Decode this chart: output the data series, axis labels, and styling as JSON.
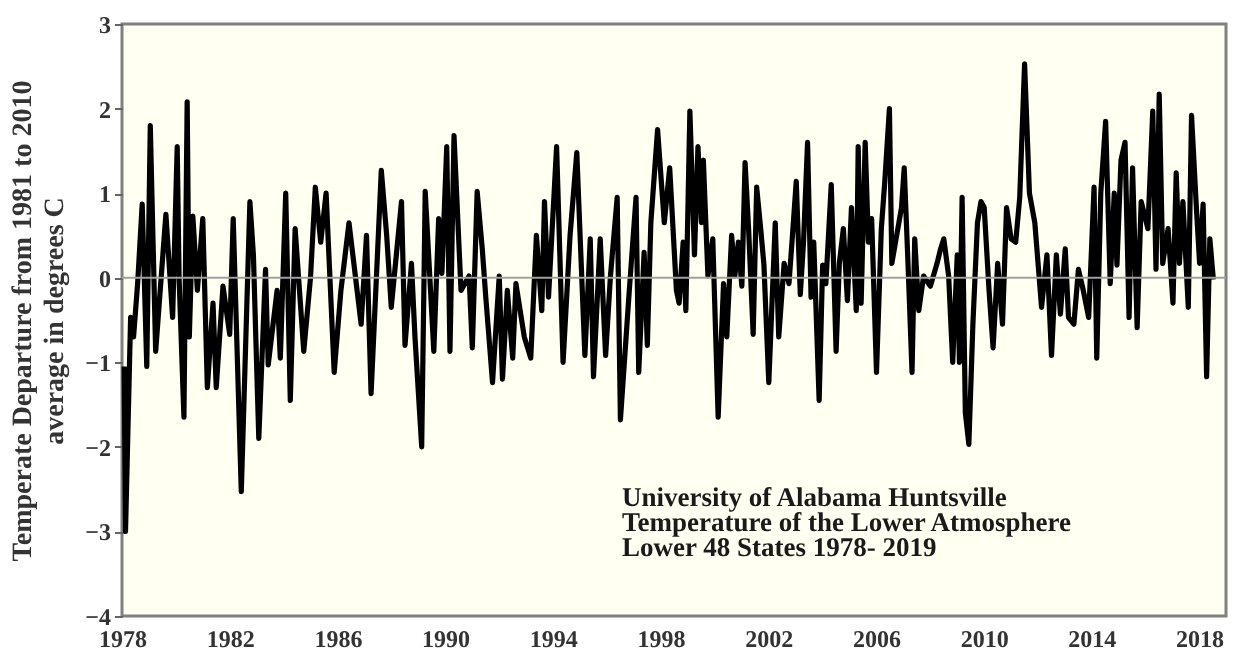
{
  "chart_data": {
    "type": "line",
    "ylabel": "Temperate Departure from 1981 to 2010\naverage in degrees C",
    "annotations": [
      "University of Alabama Huntsville",
      "Temperature of the Lower Atmosphere",
      "Lower 48 States  1978- 2019"
    ],
    "x": [
      1978.08,
      1978.13,
      1978.32,
      1978.43,
      1978.58,
      1978.75,
      1978.92,
      1979.05,
      1979.25,
      1979.63,
      1979.88,
      1980.05,
      1980.12,
      1980.3,
      1980.42,
      1980.5,
      1980.63,
      1980.8,
      1981.0,
      1981.17,
      1981.38,
      1981.5,
      1981.75,
      1982.0,
      1982.13,
      1982.43,
      1982.75,
      1982.88,
      1983.08,
      1983.33,
      1983.43,
      1983.76,
      1983.88,
      1984.08,
      1984.25,
      1984.43,
      1984.75,
      1985.0,
      1985.18,
      1985.38,
      1985.58,
      1985.88,
      1986.13,
      1986.43,
      1986.88,
      1987.08,
      1987.25,
      1987.63,
      1987.83,
      1988.0,
      1988.38,
      1988.51,
      1988.75,
      1988.88,
      1989.13,
      1989.26,
      1989.58,
      1989.76,
      1989.88,
      1990.06,
      1990.18,
      1990.33,
      1990.59,
      1990.89,
      1991.01,
      1991.19,
      1991.38,
      1991.51,
      1991.76,
      1992.01,
      1992.13,
      1992.31,
      1992.51,
      1992.63,
      1992.94,
      1993.18,
      1993.39,
      1993.59,
      1993.69,
      1993.84,
      1994.14,
      1994.38,
      1994.64,
      1994.89,
      1995.19,
      1995.39,
      1995.51,
      1995.76,
      1995.96,
      1996.14,
      1996.39,
      1996.51,
      1996.84,
      1997.09,
      1997.19,
      1997.39,
      1997.51,
      1997.64,
      1997.89,
      1998.14,
      1998.34,
      1998.59,
      1998.69,
      1998.84,
      1998.94,
      1999.09,
      1999.26,
      1999.39,
      1999.52,
      1999.59,
      1999.76,
      1999.94,
      2000.14,
      2000.34,
      2000.46,
      2000.64,
      2000.76,
      2000.89,
      2001.02,
      2001.14,
      2001.27,
      2001.44,
      2001.57,
      2001.72,
      2001.84,
      2002.02,
      2002.26,
      2002.39,
      2002.59,
      2002.77,
      2002.89,
      2003.04,
      2003.19,
      2003.31,
      2003.46,
      2003.59,
      2003.69,
      2003.89,
      2004.02,
      2004.14,
      2004.34,
      2004.52,
      2004.64,
      2004.79,
      2004.94,
      2005.09,
      2005.27,
      2005.34,
      2005.45,
      2005.6,
      2005.72,
      2005.84,
      2006.02,
      2006.2,
      2006.32,
      2006.5,
      2006.59,
      2006.77,
      2006.95,
      2007.05,
      2007.19,
      2007.34,
      2007.44,
      2007.59,
      2007.77,
      2008.02,
      2008.27,
      2008.4,
      2008.52,
      2008.7,
      2008.85,
      2009.02,
      2009.1,
      2009.2,
      2009.32,
      2009.45,
      2009.6,
      2009.77,
      2009.9,
      2010.02,
      2010.2,
      2010.35,
      2010.52,
      2010.7,
      2010.85,
      2011.02,
      2011.19,
      2011.34,
      2011.52,
      2011.7,
      2011.9,
      2012.15,
      2012.35,
      2012.52,
      2012.7,
      2012.85,
      2013.03,
      2013.15,
      2013.35,
      2013.52,
      2013.7,
      2013.9,
      2014.1,
      2014.2,
      2014.35,
      2014.53,
      2014.7,
      2014.85,
      2014.95,
      2015.1,
      2015.25,
      2015.4,
      2015.53,
      2015.7,
      2015.85,
      2016.1,
      2016.28,
      2016.4,
      2016.52,
      2016.65,
      2016.85,
      2017.03,
      2017.15,
      2017.27,
      2017.4,
      2017.6,
      2017.72,
      2017.9,
      2018.02,
      2018.15,
      2018.28,
      2018.4,
      2018.53
    ],
    "series": [
      {
        "color": "#000000",
        "values": [
          -1.05,
          -3.0,
          -0.47,
          -0.7,
          -0.07,
          0.87,
          -1.05,
          1.8,
          -0.87,
          0.75,
          -0.47,
          1.55,
          0.0,
          -1.65,
          2.08,
          -0.7,
          0.73,
          -0.15,
          0.7,
          -1.3,
          -0.3,
          -1.3,
          -0.1,
          -0.67,
          0.7,
          -2.53,
          0.9,
          0.27,
          -1.9,
          0.1,
          -1.03,
          -0.15,
          -0.95,
          1.0,
          -1.45,
          0.58,
          -0.87,
          0.0,
          1.07,
          0.42,
          1.0,
          -1.12,
          -0.15,
          0.65,
          -0.55,
          0.5,
          -1.37,
          1.27,
          0.5,
          -0.35,
          0.9,
          -0.8,
          0.17,
          -0.7,
          -2.0,
          1.02,
          -0.87,
          0.7,
          0.05,
          1.55,
          -0.87,
          1.68,
          -0.15,
          0.02,
          -0.83,
          1.02,
          0.34,
          -0.23,
          -1.24,
          0.02,
          -1.2,
          -0.15,
          -0.95,
          -0.07,
          -0.7,
          -0.95,
          0.5,
          -0.39,
          0.9,
          -0.23,
          1.55,
          -1.0,
          0.5,
          1.48,
          -0.92,
          0.46,
          -1.17,
          0.46,
          -0.92,
          0.02,
          0.95,
          -1.68,
          -0.15,
          0.95,
          -1.12,
          0.3,
          -0.8,
          0.65,
          1.75,
          0.65,
          1.3,
          -0.15,
          -0.3,
          0.42,
          -0.39,
          1.97,
          0.27,
          1.55,
          0.65,
          1.39,
          0.02,
          0.46,
          -1.65,
          -0.07,
          -0.7,
          0.5,
          0.02,
          0.42,
          -0.1,
          1.36,
          0.58,
          -0.67,
          1.07,
          0.58,
          0.15,
          -1.24,
          0.65,
          -0.7,
          0.17,
          -0.07,
          0.46,
          1.14,
          -0.2,
          0.42,
          1.6,
          -0.23,
          0.42,
          -1.45,
          0.15,
          -0.07,
          1.1,
          -0.87,
          0.17,
          0.58,
          -0.27,
          0.83,
          -0.39,
          1.55,
          -0.3,
          1.6,
          0.42,
          0.7,
          -1.12,
          0.58,
          1.1,
          2.0,
          0.17,
          0.5,
          0.83,
          1.3,
          0.17,
          -1.12,
          0.46,
          -0.39,
          0.02,
          -0.1,
          0.17,
          0.34,
          0.46,
          0.02,
          -1.0,
          0.27,
          -1.0,
          0.95,
          -1.6,
          -1.97,
          -0.55,
          0.65,
          0.9,
          0.83,
          -0.15,
          -0.83,
          0.17,
          -0.55,
          0.83,
          0.46,
          0.42,
          0.95,
          2.53,
          1.0,
          0.65,
          -0.35,
          0.27,
          -0.92,
          0.27,
          -0.43,
          0.34,
          -0.47,
          -0.55,
          0.1,
          -0.15,
          -0.47,
          1.07,
          -0.95,
          1.0,
          1.85,
          -0.07,
          1.0,
          0.15,
          1.39,
          1.6,
          -0.47,
          1.3,
          -0.59,
          0.9,
          0.58,
          1.97,
          0.1,
          2.17,
          0.17,
          0.58,
          -0.3,
          1.24,
          0.17,
          0.9,
          -0.35,
          1.92,
          0.83,
          0.17,
          0.87,
          -1.17,
          0.46,
          -0.02
        ]
      }
    ],
    "xlim": [
      1978,
      2019
    ],
    "xticks": [
      1978,
      1982,
      1986,
      1990,
      1994,
      1998,
      2002,
      2006,
      2010,
      2014,
      2018
    ],
    "ylim": [
      -4,
      3
    ],
    "yticks": [
      -4,
      -3,
      -2,
      -1,
      0,
      1,
      2,
      3
    ],
    "ref_lines": [
      {
        "axis": "y",
        "value": 0,
        "color": "#a0a0a0"
      }
    ],
    "grid": false,
    "marker": "none",
    "line_style": "solid"
  }
}
